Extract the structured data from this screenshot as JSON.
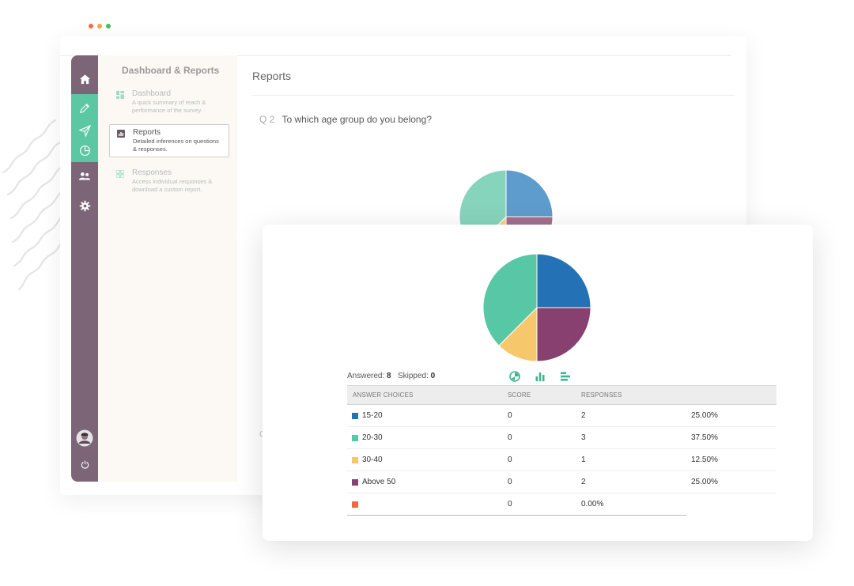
{
  "colors": {
    "rail": "#7b6577",
    "rail_active": "#5bc7a3",
    "accent": "#3fb58d",
    "dot_red": "#f26b4c",
    "dot_orange": "#f7a243",
    "dot_green": "#46c05c"
  },
  "rail": {
    "icons": [
      "home-icon",
      "pencil-icon",
      "send-icon",
      "pie-chart-icon",
      "people-icon",
      "gear-icon",
      "avatar",
      "power-icon"
    ]
  },
  "subnav": {
    "title": "Dashboard & Reports",
    "items": [
      {
        "label": "Dashboard",
        "desc": "A quick summary of reach & performance of the survey.",
        "icon": "dashboard-icon",
        "active": false
      },
      {
        "label": "Reports",
        "desc": "Detailed inferences on questions & responses.",
        "icon": "bar-chart-icon",
        "active": true
      },
      {
        "label": "Responses",
        "desc": "Access individual responses & download a custom report.",
        "icon": "grid-icon",
        "active": false
      }
    ]
  },
  "main": {
    "title": "Reports",
    "question_number": "Q 2",
    "question_text": "To which age group do you belong?",
    "next_question_peek": "Q"
  },
  "summary": {
    "answered_label": "Answered:",
    "answered_value": "8",
    "skipped_label": "Skipped:",
    "skipped_value": "0",
    "view_icons": [
      "pie-view-icon",
      "bar-view-icon",
      "horizontal-bar-view-icon"
    ]
  },
  "table": {
    "headers": {
      "choice": "ANSWER CHOICES",
      "score": "SCORE",
      "responses": "RESPONSES"
    },
    "rows": [
      {
        "choice": "15-20",
        "score": "0",
        "responses": "2",
        "percent": "25.00%",
        "color": "#2472b5"
      },
      {
        "choice": "20-30",
        "score": "0",
        "responses": "3",
        "percent": "37.50%",
        "color": "#58c7a6"
      },
      {
        "choice": "30-40",
        "score": "0",
        "responses": "1",
        "percent": "12.50%",
        "color": "#f6c86b"
      },
      {
        "choice": "Above 50",
        "score": "0",
        "responses": "2",
        "percent": "25.00%",
        "color": "#87406f"
      },
      {
        "choice": "",
        "score": "0",
        "responses": "0.00%",
        "percent": "",
        "color": "#ec6a45"
      }
    ]
  },
  "chart_data": {
    "type": "pie",
    "categories": [
      "15-20",
      "20-30",
      "30-40",
      "Above 50"
    ],
    "values": [
      2,
      3,
      1,
      2
    ],
    "colors": [
      "#2472b5",
      "#58c7a6",
      "#f6c86b",
      "#87406f"
    ],
    "slice_order_clockwise_from_top": [
      "15-20",
      "Above 50",
      "30-40",
      "20-30"
    ],
    "back_colors": [
      "#5e9ccd",
      "#87d4bc",
      "#f6d387",
      "#a4708e"
    ]
  }
}
